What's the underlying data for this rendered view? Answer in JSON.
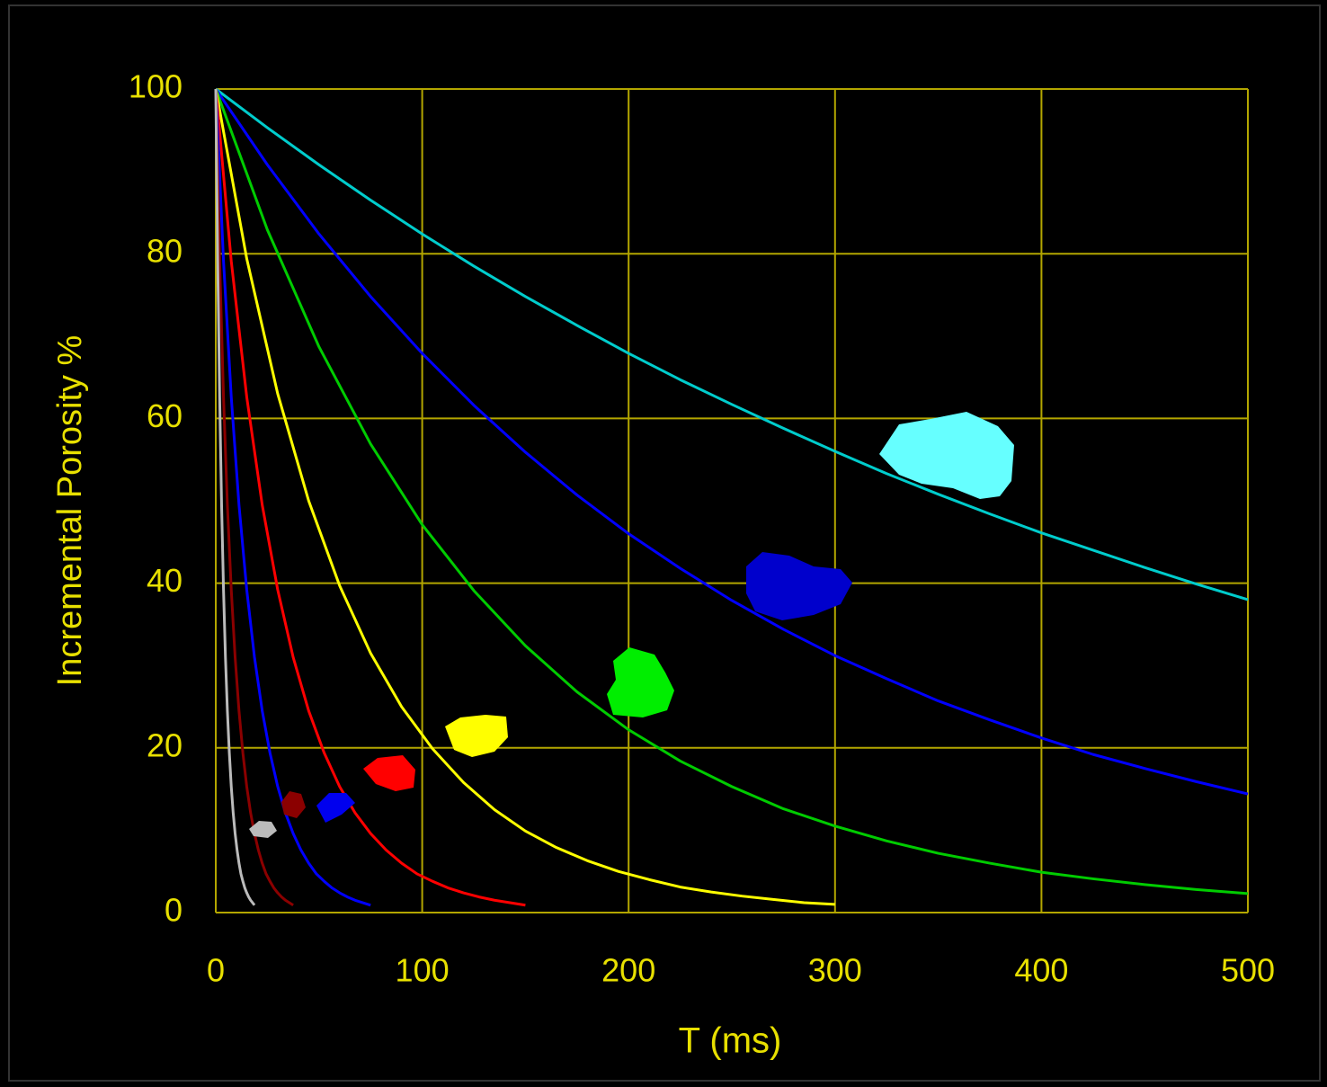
{
  "chart_data": {
    "type": "line",
    "x_label": "T (ms)",
    "y_label": "Incremental Porosity %",
    "xlim": [
      0,
      500
    ],
    "ylim": [
      0,
      100
    ],
    "xticks": [
      0,
      100,
      200,
      300,
      400,
      500
    ],
    "yticks": [
      0,
      20,
      40,
      60,
      80,
      100
    ],
    "grid": true,
    "grid_color": "#b3a600",
    "text_color": "#e8e000",
    "series": [
      {
        "color": "#00cccc",
        "x": [
          0,
          25,
          50,
          75,
          100,
          125,
          150,
          175,
          200,
          225,
          250,
          275,
          300,
          325,
          350,
          375,
          400,
          425,
          450,
          475,
          500
        ],
        "values": [
          100,
          95.3,
          90.8,
          86.5,
          82.4,
          78.5,
          74.8,
          71.3,
          67.9,
          64.7,
          61.7,
          58.8,
          56.0,
          53.3,
          50.8,
          48.4,
          46.1,
          44.0,
          41.9,
          39.9,
          38.0
        ]
      },
      {
        "color": "#0000ff",
        "x": [
          0,
          25,
          50,
          75,
          100,
          125,
          150,
          175,
          200,
          225,
          250,
          275,
          300,
          325,
          350,
          375,
          400,
          425,
          450,
          475,
          500
        ],
        "values": [
          100,
          90.8,
          82.4,
          74.8,
          67.9,
          61.6,
          55.9,
          50.7,
          46.0,
          41.8,
          37.9,
          34.4,
          31.2,
          28.4,
          25.7,
          23.4,
          21.2,
          19.2,
          17.5,
          15.9,
          14.4
        ]
      },
      {
        "color": "#00cc00",
        "x": [
          0,
          25,
          50,
          75,
          100,
          125,
          150,
          175,
          200,
          225,
          250,
          275,
          300,
          325,
          350,
          375,
          400,
          425,
          450,
          475,
          500
        ],
        "values": [
          100,
          82.9,
          68.7,
          56.9,
          47.1,
          39.1,
          32.4,
          26.8,
          22.2,
          18.4,
          15.3,
          12.6,
          10.5,
          8.7,
          7.2,
          6.0,
          4.9,
          4.1,
          3.4,
          2.8,
          2.3
        ]
      },
      {
        "color": "#ffff00",
        "x": [
          0,
          15,
          30,
          45,
          60,
          75,
          90,
          105,
          120,
          135,
          150,
          165,
          180,
          195,
          210,
          225,
          240,
          255,
          270,
          285,
          300
        ],
        "values": [
          100,
          79.4,
          63.0,
          50.0,
          39.7,
          31.5,
          25.0,
          19.9,
          15.8,
          12.5,
          9.9,
          7.9,
          6.3,
          5.0,
          4.0,
          3.1,
          2.5,
          2.0,
          1.6,
          1.2,
          1.0
        ]
      },
      {
        "color": "#ff0000",
        "x": [
          0,
          7.5,
          15,
          22.5,
          30,
          37.5,
          45,
          52.5,
          60,
          67.5,
          75,
          82.5,
          90,
          97.5,
          105,
          112.5,
          120,
          127.5,
          135,
          142.5,
          150
        ],
        "values": [
          100,
          79.1,
          62.6,
          49.5,
          39.2,
          31.0,
          24.5,
          19.4,
          15.3,
          12.1,
          9.6,
          7.6,
          6.0,
          4.7,
          3.8,
          3.0,
          2.4,
          1.9,
          1.5,
          1.2,
          0.9
        ]
      },
      {
        "color": "#0000ff",
        "x": [
          0,
          3.75,
          7.5,
          11.25,
          15,
          18.75,
          22.5,
          26.25,
          30,
          33.75,
          37.5,
          41.25,
          45,
          48.75,
          52.5,
          56.25,
          60,
          63.75,
          67.5,
          71.25,
          75
        ],
        "values": [
          100,
          79.1,
          62.6,
          49.5,
          39.2,
          31.0,
          24.5,
          19.4,
          15.3,
          12.1,
          9.6,
          7.6,
          6.0,
          4.7,
          3.8,
          3.0,
          2.4,
          1.9,
          1.5,
          1.2,
          0.9
        ]
      },
      {
        "color": "#8b0000",
        "x": [
          0,
          1.875,
          3.75,
          5.625,
          7.5,
          9.375,
          11.25,
          13.125,
          15,
          16.875,
          18.75,
          20.625,
          22.5,
          24.375,
          26.25,
          28.125,
          30,
          31.875,
          33.75,
          35.625,
          37.5
        ],
        "values": [
          100,
          79.1,
          62.6,
          49.5,
          39.2,
          31.0,
          24.5,
          19.4,
          15.3,
          12.1,
          9.6,
          7.6,
          6.0,
          4.7,
          3.8,
          3.0,
          2.4,
          1.9,
          1.5,
          1.2,
          0.9
        ]
      },
      {
        "color": "#bbbbbb",
        "x": [
          0,
          0.9375,
          1.875,
          2.8125,
          3.75,
          4.6875,
          5.625,
          6.5625,
          7.5,
          8.4375,
          9.375,
          10.3125,
          11.25,
          12.1875,
          13.125,
          14.0625,
          15,
          15.9375,
          16.875,
          17.8125,
          18.75
        ],
        "values": [
          100,
          79.1,
          62.6,
          49.5,
          39.2,
          31.0,
          24.5,
          19.4,
          15.3,
          12.1,
          9.6,
          7.6,
          6.0,
          4.7,
          3.8,
          3.0,
          2.4,
          1.9,
          1.5,
          1.2,
          0.9
        ]
      }
    ]
  }
}
